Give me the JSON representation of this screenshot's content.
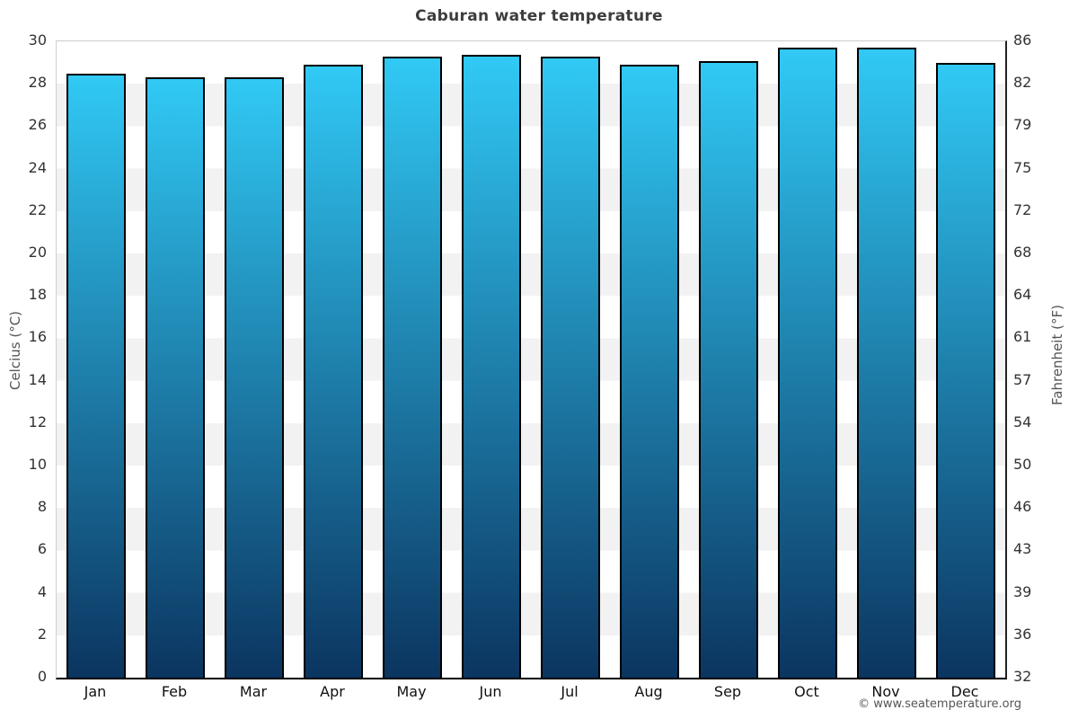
{
  "title": "Caburan water temperature",
  "footer": {
    "copyright": "© www.seatemperature.org"
  },
  "colors": {
    "bar_gradient_top": "#31c9f5",
    "bar_gradient_bottom": "#0b3560",
    "band_gray": "#f2f2f2",
    "bar_border": "#000000",
    "title_text": "#3d3d3d",
    "tick_text": "#333333"
  },
  "chart_data": {
    "type": "bar",
    "title": "Caburan water temperature",
    "categories": [
      "Jan",
      "Feb",
      "Mar",
      "Apr",
      "May",
      "Jun",
      "Jul",
      "Aug",
      "Sep",
      "Oct",
      "Nov",
      "Dec"
    ],
    "values": [
      28.4,
      28.2,
      28.2,
      28.8,
      29.2,
      29.3,
      29.2,
      28.8,
      29.0,
      29.6,
      29.6,
      28.9
    ],
    "values_unit": "°C",
    "ylabel_left": "Celcius (°C)",
    "ylabel_right": "Fahrenheit (°F)",
    "xlabel": "",
    "ylim": [
      0,
      30
    ],
    "celsius_ticks": [
      30,
      28,
      26,
      24,
      22,
      20,
      18,
      16,
      14,
      12,
      10,
      8,
      6,
      4,
      2,
      0
    ],
    "fahrenheit_ticks": [
      86,
      82,
      79,
      75,
      72,
      68,
      64,
      61,
      57,
      54,
      50,
      46,
      43,
      39,
      36,
      32
    ],
    "grid": "alternating horizontal bands every 2°C",
    "legend": "none",
    "bar_style": "vertical gradient cyan-to-navy with black outline"
  }
}
